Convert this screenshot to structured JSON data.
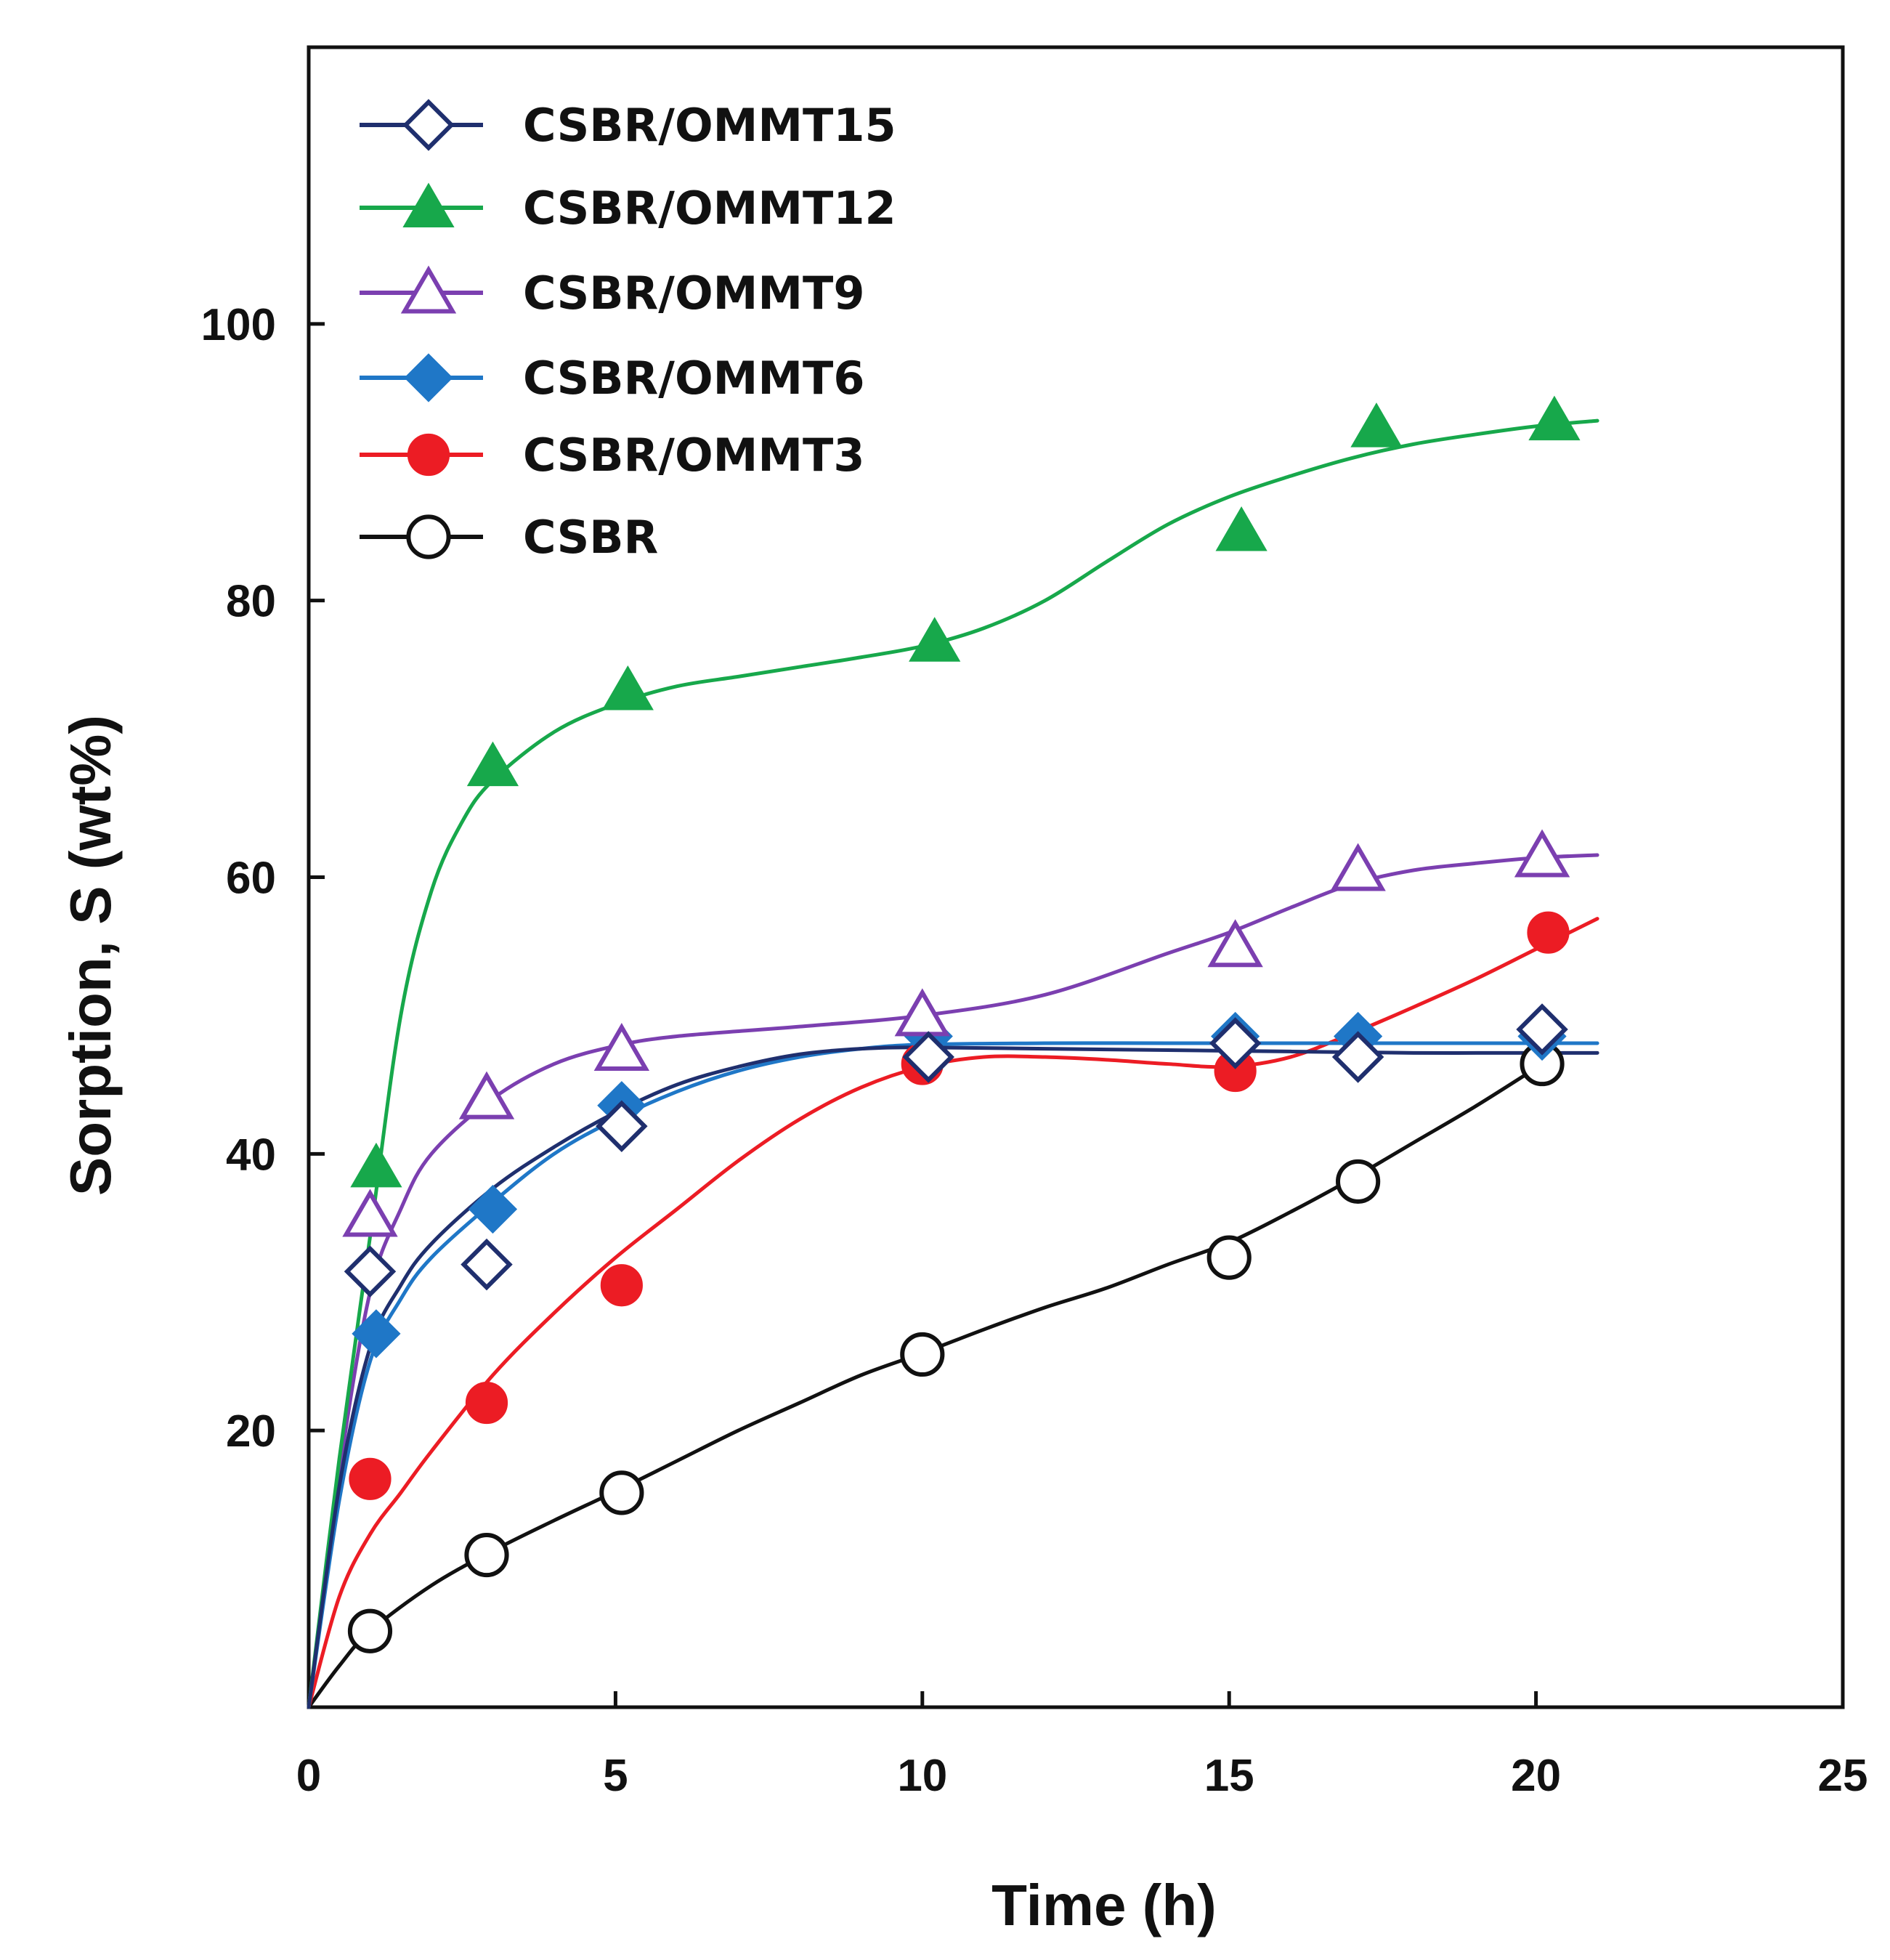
{
  "chart_data": {
    "type": "scatter",
    "title": "",
    "xlabel": "Time (h)",
    "ylabel": "Sorption, S (wt%)",
    "xlim": [
      0,
      25
    ],
    "ylim": [
      0,
      120
    ],
    "xticks": [
      0,
      5,
      10,
      15,
      20,
      25
    ],
    "xtick_labels": [
      "0",
      "5",
      "10",
      "15",
      "20",
      "25"
    ],
    "yticks": [
      20,
      40,
      60,
      80,
      100
    ],
    "ytick_labels": [
      "20",
      "40",
      "60",
      "80",
      "100"
    ],
    "grid": false,
    "legend_position": "top-left",
    "series": [
      {
        "name": "CSBR/OMMT15",
        "color": "#1f2f6e",
        "marker": "diamond-open",
        "x": [
          1,
          2.9,
          5.1,
          10.1,
          15.1,
          17.1,
          20.1
        ],
        "y": [
          31.5,
          32,
          42,
          47,
          48,
          47,
          49
        ],
        "curve_x": [
          0,
          0.5,
          1,
          1.5,
          2,
          3,
          4,
          5,
          6,
          7,
          8,
          9,
          10,
          12,
          14,
          16,
          18,
          20,
          21
        ],
        "curve_y": [
          0,
          16,
          26,
          30.5,
          33.5,
          37.5,
          40.5,
          43,
          45,
          46.3,
          47.2,
          47.6,
          47.7,
          47.6,
          47.5,
          47.4,
          47.3,
          47.3,
          47.3
        ]
      },
      {
        "name": "CSBR/OMMT12",
        "color": "#17a84b",
        "marker": "triangle-filled",
        "x": [
          1.1,
          3,
          5.2,
          10.2,
          15.2,
          17.4,
          20.3
        ],
        "y": [
          39,
          68,
          73.5,
          77,
          85,
          92.5,
          93
        ],
        "curve_x": [
          0,
          0.5,
          1,
          1.5,
          2,
          2.5,
          3,
          4,
          5,
          6,
          7,
          8,
          9,
          10,
          11,
          12,
          13,
          14,
          15,
          16,
          17,
          18,
          19,
          20,
          21
        ],
        "curve_y": [
          0,
          18,
          34,
          50,
          59,
          64,
          67,
          70.5,
          72.5,
          73.8,
          74.5,
          75.2,
          75.9,
          76.7,
          78,
          80,
          82.8,
          85.5,
          87.5,
          89,
          90.3,
          91.3,
          92,
          92.6,
          93
        ]
      },
      {
        "name": "CSBR/OMMT9",
        "color": "#7b3fb0",
        "marker": "triangle-open",
        "x": [
          1,
          2.9,
          5.1,
          10,
          15.1,
          17.1,
          20.1
        ],
        "y": [
          35.5,
          44,
          47.5,
          50,
          55,
          60.5,
          61.5
        ],
        "curve_x": [
          0,
          0.5,
          1,
          1.5,
          2,
          3,
          4,
          5,
          6,
          8,
          10,
          12,
          14,
          15,
          16,
          17,
          18,
          19,
          20,
          21
        ],
        "curve_y": [
          0,
          17,
          30,
          36,
          40,
          44,
          46.5,
          47.8,
          48.5,
          49.2,
          50,
          51.5,
          54.5,
          56,
          57.8,
          59.5,
          60.5,
          61,
          61.4,
          61.6
        ]
      },
      {
        "name": "CSBR/OMMT6",
        "color": "#1f77c7",
        "marker": "diamond-filled",
        "x": [
          1.1,
          3,
          5.1,
          10.1,
          15.1,
          17.1,
          20.1
        ],
        "y": [
          27,
          36,
          43.5,
          48.5,
          48.5,
          48.5,
          48.5
        ],
        "curve_x": [
          0,
          0.5,
          1,
          1.5,
          2,
          3,
          4,
          5,
          6,
          7,
          8,
          9,
          10,
          12,
          14,
          16,
          18,
          20,
          21
        ],
        "curve_y": [
          0,
          15,
          25,
          29.5,
          32.5,
          36.5,
          40,
          42.5,
          44.5,
          46,
          47,
          47.6,
          47.9,
          48,
          48,
          48,
          48,
          48,
          48
        ]
      },
      {
        "name": "CSBR/OMMT3",
        "color": "#ec1c24",
        "marker": "circle-filled",
        "x": [
          1,
          2.9,
          5.1,
          10,
          15.1,
          20.2
        ],
        "y": [
          16.5,
          22,
          30.5,
          46.5,
          46,
          56
        ],
        "curve_x": [
          0,
          0.5,
          1,
          1.5,
          2,
          3,
          4,
          5,
          6,
          7,
          8,
          9,
          10,
          11,
          12,
          13,
          14,
          15,
          16,
          17,
          18,
          19,
          20,
          21
        ],
        "curve_y": [
          0,
          8,
          12.5,
          15.5,
          18.5,
          24,
          28.5,
          32.5,
          36,
          39.5,
          42.5,
          44.8,
          46.3,
          47,
          47,
          46.8,
          46.5,
          46.3,
          47,
          48.7,
          50.6,
          52.6,
          54.8,
          57
        ]
      },
      {
        "name": "CSBR",
        "color": "#111111",
        "marker": "circle-open",
        "x": [
          1,
          2.9,
          5.1,
          10,
          15,
          17.1,
          20.1
        ],
        "y": [
          5.5,
          11,
          15.5,
          25.5,
          32.5,
          38,
          46.5
        ],
        "curve_x": [
          0,
          0.5,
          1,
          2,
          3,
          4,
          5,
          6,
          7,
          8,
          9,
          10,
          11,
          12,
          13,
          14,
          15,
          16,
          17,
          18,
          19,
          20
        ],
        "curve_y": [
          0,
          3,
          5.5,
          8.8,
          11.3,
          13.5,
          15.6,
          17.8,
          20,
          22,
          24,
          25.6,
          27.3,
          28.9,
          30.3,
          32,
          33.6,
          35.8,
          38.2,
          40.8,
          43.4,
          46.2
        ]
      }
    ]
  }
}
